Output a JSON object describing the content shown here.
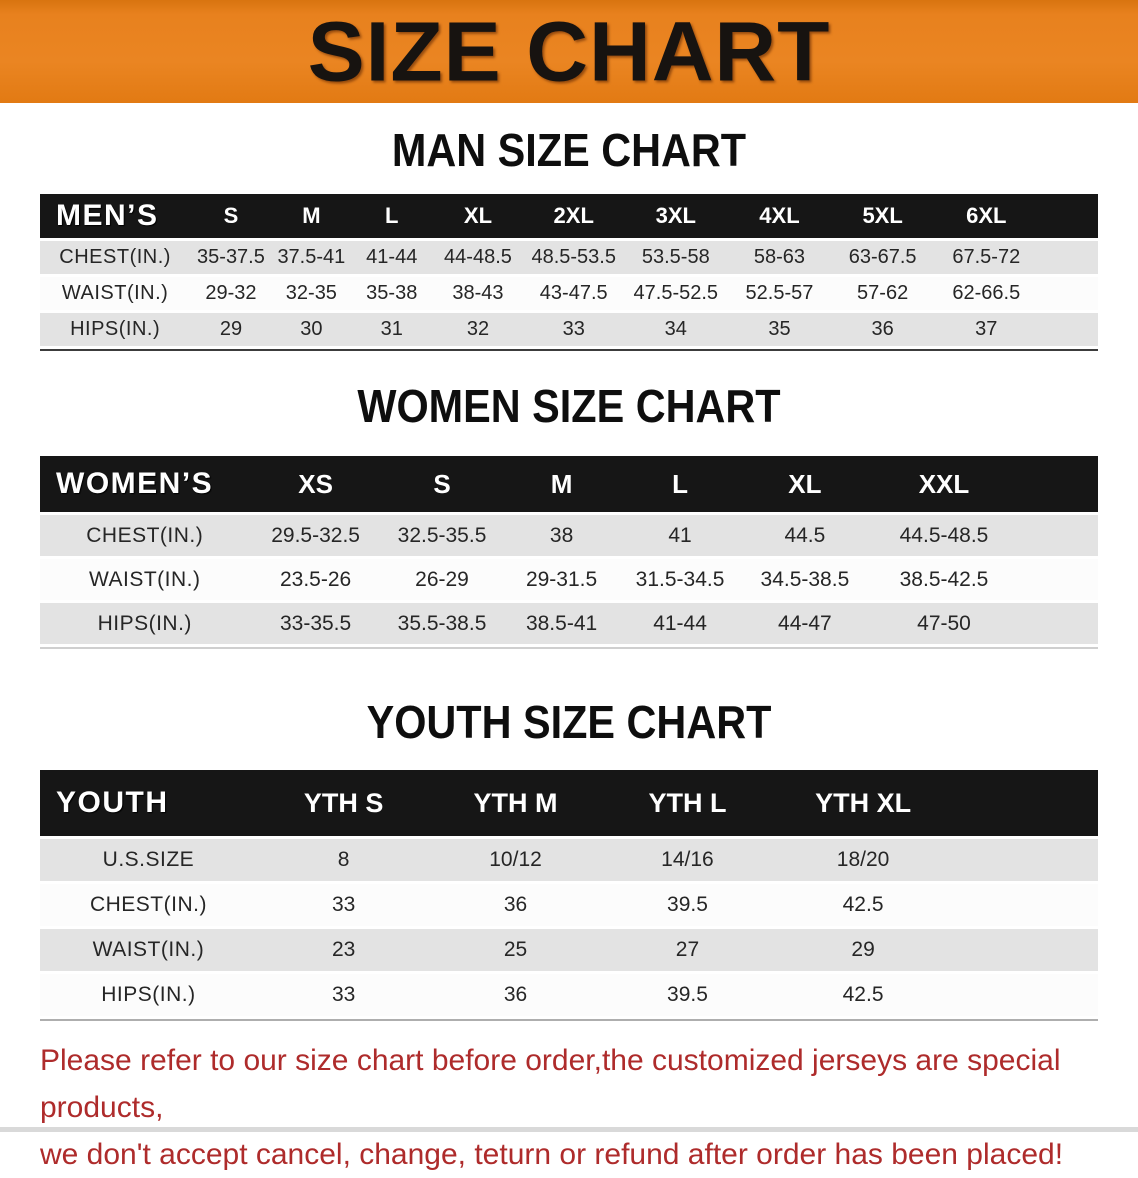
{
  "banner": {
    "title": "SIZE CHART",
    "bg_color": "#e8811e",
    "text_color": "#171310"
  },
  "sections": [
    {
      "heading": "MAN SIZE CHART",
      "table": {
        "label": "MEN’S",
        "sizes": [
          "S",
          "M",
          "L",
          "XL",
          "2XL",
          "3XL",
          "4XL",
          "5XL",
          "6XL"
        ],
        "rows": [
          {
            "label": "CHEST(IN.)",
            "values": [
              "35-37.5",
              "37.5-41",
              "41-44",
              "44-48.5",
              "48.5-53.5",
              "53.5-58",
              "58-63",
              "63-67.5",
              "67.5-72"
            ]
          },
          {
            "label": "WAIST(IN.)",
            "values": [
              "29-32",
              "32-35",
              "35-38",
              "38-43",
              "43-47.5",
              "47.5-52.5",
              "52.5-57",
              "57-62",
              "62-66.5"
            ]
          },
          {
            "label": "HIPS(IN.)",
            "values": [
              "29",
              "30",
              "31",
              "32",
              "33",
              "34",
              "35",
              "36",
              "37"
            ]
          }
        ]
      }
    },
    {
      "heading": "WOMEN SIZE CHART",
      "table": {
        "label": "WOMEN’S",
        "sizes": [
          "XS",
          "S",
          "M",
          "L",
          "XL",
          "XXL"
        ],
        "rows": [
          {
            "label": "CHEST(IN.)",
            "values": [
              "29.5-32.5",
              "32.5-35.5",
              "38",
              "41",
              "44.5",
              "44.5-48.5"
            ]
          },
          {
            "label": "WAIST(IN.)",
            "values": [
              "23.5-26",
              "26-29",
              "29-31.5",
              "31.5-34.5",
              "34.5-38.5",
              "38.5-42.5"
            ]
          },
          {
            "label": "HIPS(IN.)",
            "values": [
              "33-35.5",
              "35.5-38.5",
              "38.5-41",
              "41-44",
              "44-47",
              "47-50"
            ]
          }
        ]
      }
    },
    {
      "heading": "YOUTH SIZE CHART",
      "table": {
        "label": "YOUTH",
        "sizes": [
          "YTH S",
          "YTH M",
          "YTH L",
          "YTH XL"
        ],
        "rows": [
          {
            "label": "U.S.SIZE",
            "values": [
              "8",
              "10/12",
              "14/16",
              "18/20"
            ]
          },
          {
            "label": "CHEST(IN.)",
            "values": [
              "33",
              "36",
              "39.5",
              "42.5"
            ]
          },
          {
            "label": "WAIST(IN.)",
            "values": [
              "23",
              "25",
              "27",
              "29"
            ]
          },
          {
            "label": "HIPS(IN.)",
            "values": [
              "33",
              "36",
              "39.5",
              "42.5"
            ]
          }
        ]
      }
    }
  ],
  "disclaimer": {
    "color": "#ae2b2b",
    "lines": [
      "Please refer to our size chart before order,the customized jerseys are special products,",
      "we don't accept cancel, change, teturn or refund after order has been placed!"
    ]
  }
}
